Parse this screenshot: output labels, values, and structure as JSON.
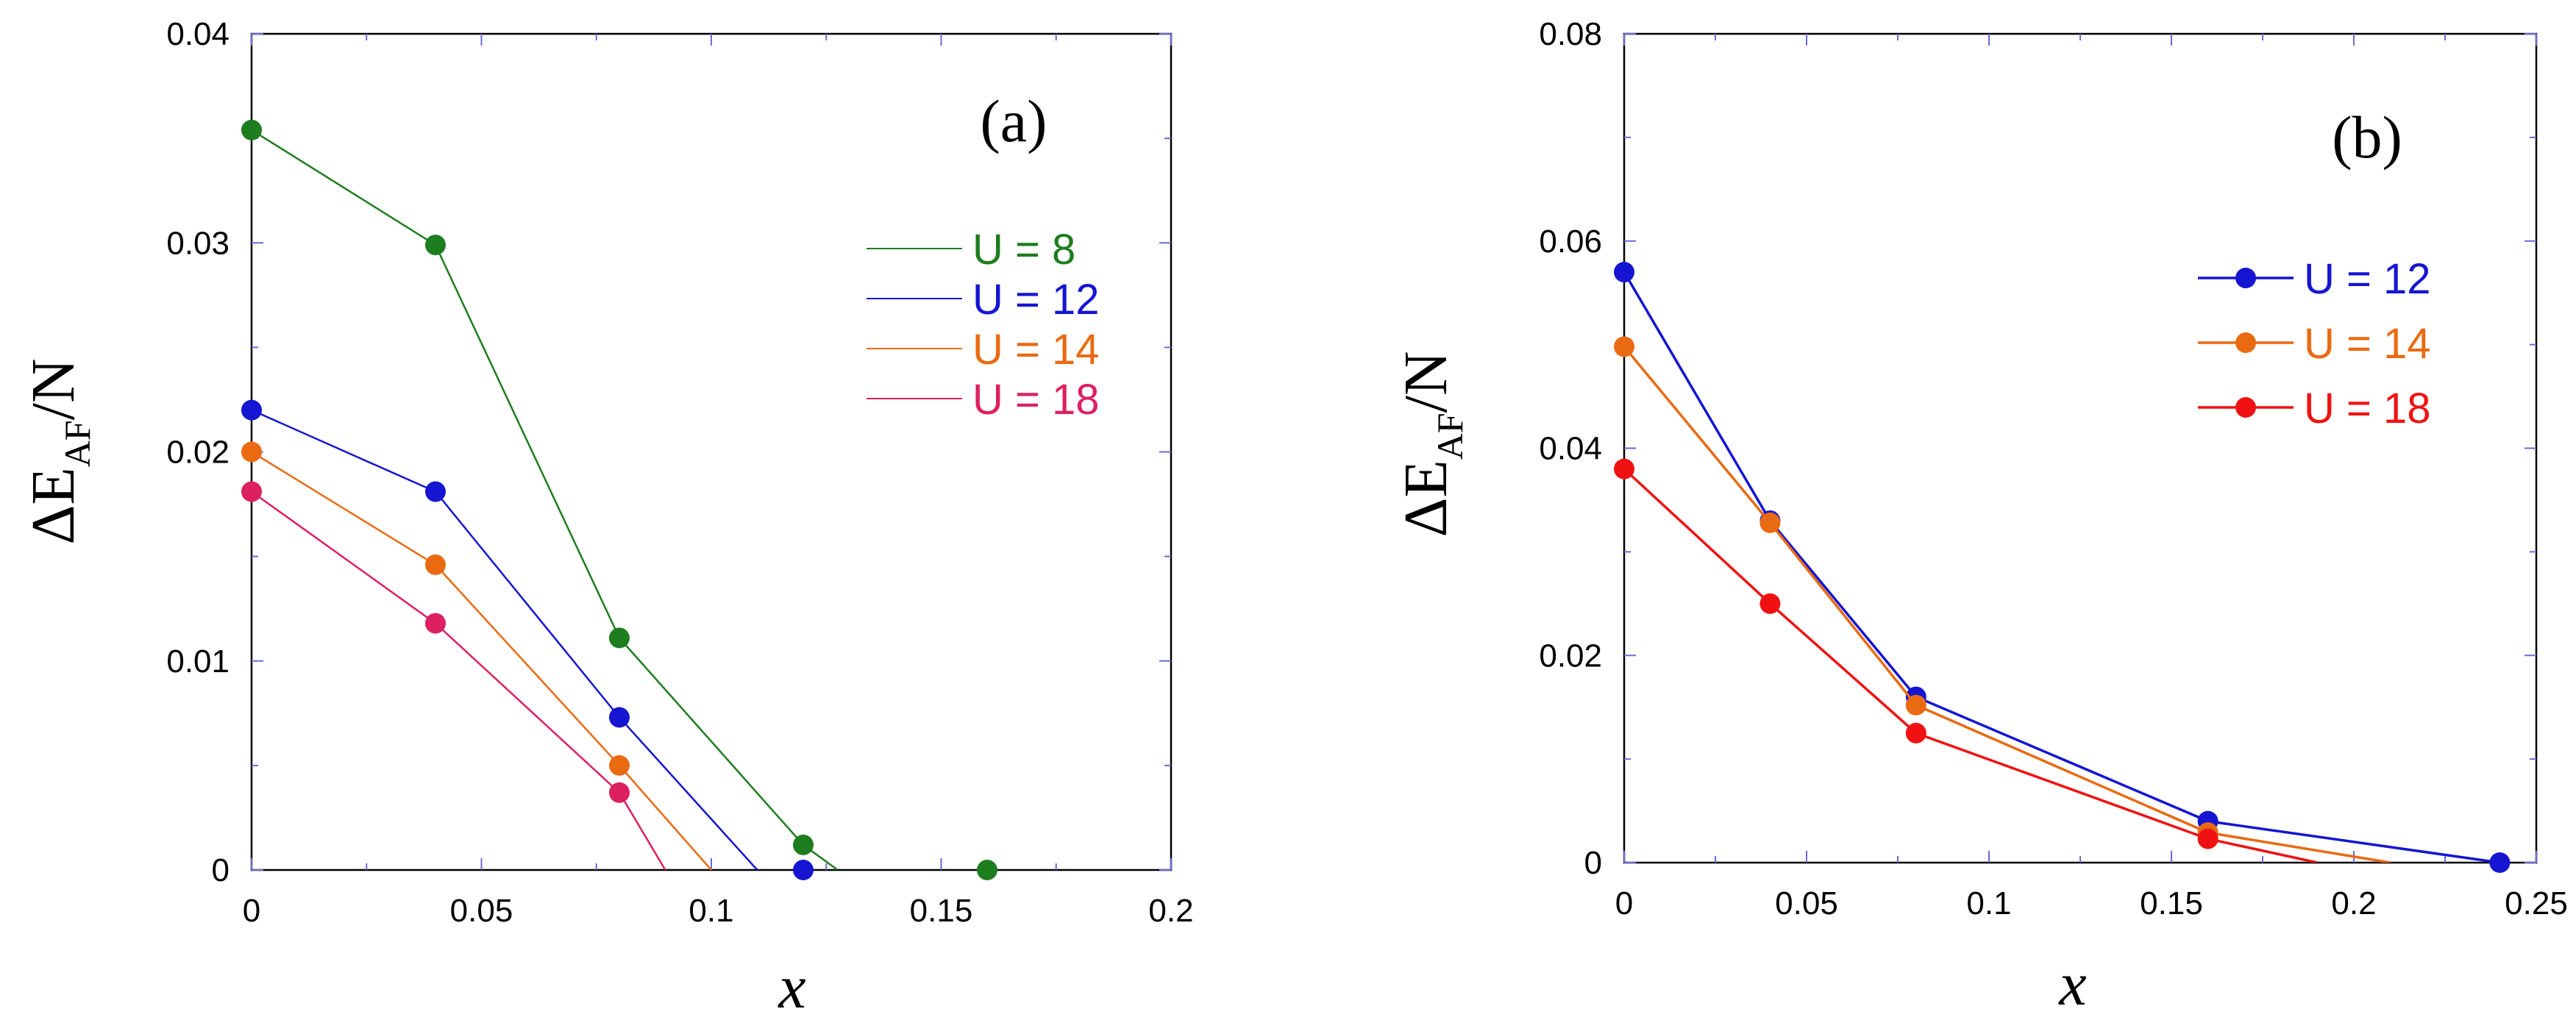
{
  "chart_data": [
    {
      "type": "line",
      "panel_label": "(a)",
      "xlabel": "x",
      "ylabel": "ΔE",
      "ylabel_sub": "AF",
      "ylabel_tail": "/N",
      "xlim": [
        0,
        0.2
      ],
      "ylim": [
        0,
        0.04
      ],
      "x_ticks": [
        0,
        0.05,
        0.1,
        0.15,
        0.2
      ],
      "x_tick_labels": [
        "0",
        "0.05",
        "0.1",
        "0.15",
        "0.2"
      ],
      "y_ticks": [
        0,
        0.01,
        0.02,
        0.03,
        0.04
      ],
      "y_tick_labels": [
        "0",
        "0.01",
        "0.02",
        "0.03",
        "0.04"
      ],
      "grid": false,
      "legend_position": "right",
      "series": [
        {
          "name": "U = 8",
          "color": "#1e7d1e",
          "points": [
            [
              0,
              0.0354
            ],
            [
              0.04,
              0.0299
            ],
            [
              0.08,
              0.0111
            ],
            [
              0.12,
              0.0012
            ],
            [
              0.16,
              0.0
            ]
          ],
          "line": [
            [
              0,
              0.0354
            ],
            [
              0.04,
              0.0299
            ],
            [
              0.08,
              0.0111
            ],
            [
              0.12,
              0.0012
            ],
            [
              0.1275,
              0.0
            ]
          ]
        },
        {
          "name": "U = 12",
          "color": "#1515d2",
          "points": [
            [
              0,
              0.022
            ],
            [
              0.04,
              0.0181
            ],
            [
              0.08,
              0.0073
            ],
            [
              0.12,
              0.0
            ]
          ],
          "line": [
            [
              0,
              0.022
            ],
            [
              0.04,
              0.0181
            ],
            [
              0.08,
              0.0073
            ],
            [
              0.11,
              0.0
            ]
          ]
        },
        {
          "name": "U = 14",
          "color": "#ea6a12",
          "points": [
            [
              0,
              0.02
            ],
            [
              0.04,
              0.0146
            ],
            [
              0.08,
              0.005
            ]
          ],
          "line": [
            [
              0,
              0.02
            ],
            [
              0.04,
              0.0146
            ],
            [
              0.08,
              0.005
            ],
            [
              0.1,
              0.0
            ]
          ]
        },
        {
          "name": "U = 18",
          "color": "#dd2060",
          "points": [
            [
              0,
              0.0181
            ],
            [
              0.04,
              0.0118
            ],
            [
              0.08,
              0.0037
            ]
          ],
          "line": [
            [
              0,
              0.0181
            ],
            [
              0.04,
              0.0118
            ],
            [
              0.08,
              0.0037
            ],
            [
              0.09,
              0.0
            ]
          ]
        }
      ]
    },
    {
      "type": "line",
      "panel_label": "(b)",
      "xlabel": "x",
      "ylabel": "ΔE",
      "ylabel_sub": "AF",
      "ylabel_tail": "/N",
      "xlim": [
        0,
        0.25
      ],
      "ylim": [
        0,
        0.08
      ],
      "x_ticks": [
        0,
        0.05,
        0.1,
        0.15,
        0.2,
        0.25
      ],
      "x_tick_labels": [
        "0",
        "0.05",
        "0.1",
        "0.15",
        "0.2",
        "0.25"
      ],
      "y_ticks": [
        0,
        0.02,
        0.04,
        0.06,
        0.08
      ],
      "y_tick_labels": [
        "0",
        "0.02",
        "0.04",
        "0.06",
        "0.08"
      ],
      "grid": false,
      "legend_position": "right",
      "series": [
        {
          "name": "U = 12",
          "color": "#1515d2",
          "points": [
            [
              0,
              0.057
            ],
            [
              0.04,
              0.033
            ],
            [
              0.08,
              0.016
            ],
            [
              0.16,
              0.004
            ],
            [
              0.24,
              0.0
            ]
          ],
          "line": [
            [
              0,
              0.057
            ],
            [
              0.04,
              0.033
            ],
            [
              0.08,
              0.016
            ],
            [
              0.16,
              0.004
            ],
            [
              0.24,
              0.0
            ]
          ]
        },
        {
          "name": "U = 14",
          "color": "#ea6a12",
          "points": [
            [
              0,
              0.0498
            ],
            [
              0.04,
              0.0328
            ],
            [
              0.08,
              0.0152
            ],
            [
              0.16,
              0.0029
            ]
          ],
          "line": [
            [
              0,
              0.0498
            ],
            [
              0.04,
              0.0328
            ],
            [
              0.08,
              0.0152
            ],
            [
              0.16,
              0.0029
            ],
            [
              0.21,
              0.0
            ]
          ]
        },
        {
          "name": "U = 18",
          "color": "#f01212",
          "points": [
            [
              0,
              0.038
            ],
            [
              0.04,
              0.025
            ],
            [
              0.08,
              0.0125
            ],
            [
              0.16,
              0.0023
            ]
          ],
          "line": [
            [
              0,
              0.038
            ],
            [
              0.04,
              0.025
            ],
            [
              0.08,
              0.0125
            ],
            [
              0.16,
              0.0023
            ],
            [
              0.19,
              0.0
            ]
          ]
        }
      ]
    }
  ]
}
